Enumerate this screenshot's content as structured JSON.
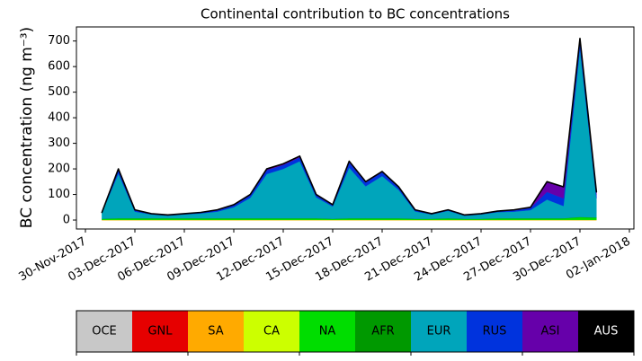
{
  "chart_data": {
    "type": "stacked_area",
    "title": "Continental contribution to BC concentrations",
    "y_label": "BC concentration (ng m⁻³)",
    "x": [
      "2017-12-01",
      "2017-12-02",
      "2017-12-03",
      "2017-12-04",
      "2017-12-05",
      "2017-12-06",
      "2017-12-07",
      "2017-12-08",
      "2017-12-09",
      "2017-12-10",
      "2017-12-11",
      "2017-12-12",
      "2017-12-13",
      "2017-12-14",
      "2017-12-15",
      "2017-12-16",
      "2017-12-17",
      "2017-12-18",
      "2017-12-19",
      "2017-12-20",
      "2017-12-21",
      "2017-12-22",
      "2017-12-23",
      "2017-12-24",
      "2017-12-25",
      "2017-12-26",
      "2017-12-27",
      "2017-12-28",
      "2017-12-29",
      "2017-12-30",
      "2017-12-31"
    ],
    "xlim": [
      "2017-11-30",
      "2018-01-02"
    ],
    "xticks": [
      {
        "value": "2017-11-30",
        "label": "30-Nov-2017"
      },
      {
        "value": "2017-12-03",
        "label": "03-Dec-2017"
      },
      {
        "value": "2017-12-06",
        "label": "06-Dec-2017"
      },
      {
        "value": "2017-12-09",
        "label": "09-Dec-2017"
      },
      {
        "value": "2017-12-12",
        "label": "12-Dec-2017"
      },
      {
        "value": "2017-12-15",
        "label": "15-Dec-2017"
      },
      {
        "value": "2017-12-18",
        "label": "18-Dec-2017"
      },
      {
        "value": "2017-12-21",
        "label": "21-Dec-2017"
      },
      {
        "value": "2017-12-24",
        "label": "24-Dec-2017"
      },
      {
        "value": "2017-12-27",
        "label": "27-Dec-2017"
      },
      {
        "value": "2017-12-30",
        "label": "30-Dec-2017"
      },
      {
        "value": "2018-01-02",
        "label": "02-Jan-2018"
      }
    ],
    "ylim": [
      -35,
      755
    ],
    "yticks": [
      0,
      100,
      200,
      300,
      400,
      500,
      600,
      700
    ],
    "series": [
      {
        "name": "OCE",
        "color": "#c8c8c8",
        "values": [
          0,
          0,
          0,
          0,
          0,
          0,
          0,
          0,
          0,
          0,
          0,
          0,
          0,
          0,
          0,
          0,
          0,
          0,
          0,
          0,
          0,
          0,
          0,
          0,
          0,
          0,
          0,
          0,
          0,
          0,
          0
        ]
      },
      {
        "name": "GNL",
        "color": "#e60000",
        "values": [
          0,
          0,
          0,
          0,
          0,
          0,
          0,
          0,
          0,
          0,
          0,
          0,
          0,
          0,
          0,
          0,
          0,
          0,
          0,
          0,
          0,
          0,
          0,
          0,
          0,
          0,
          0,
          0,
          0,
          0,
          0
        ]
      },
      {
        "name": "SA",
        "color": "#ffaa00",
        "values": [
          0,
          0,
          0,
          0,
          0,
          0,
          0,
          0,
          0,
          0,
          0,
          0,
          0,
          0,
          0,
          0,
          0,
          0,
          0,
          0,
          0,
          0,
          0,
          0,
          0,
          0,
          0,
          0,
          0,
          0,
          0
        ]
      },
      {
        "name": "CA",
        "color": "#ccff00",
        "values": [
          1,
          1,
          1,
          1,
          1,
          1,
          1,
          1,
          1,
          1,
          1,
          1,
          1,
          1,
          1,
          1,
          1,
          1,
          1,
          1,
          1,
          1,
          1,
          1,
          1,
          1,
          1,
          1,
          1,
          1,
          1
        ]
      },
      {
        "name": "NA",
        "color": "#00dd00",
        "values": [
          3,
          5,
          5,
          5,
          5,
          5,
          5,
          5,
          5,
          5,
          5,
          5,
          5,
          5,
          3,
          5,
          5,
          5,
          5,
          3,
          3,
          5,
          3,
          3,
          5,
          5,
          5,
          5,
          5,
          10,
          8
        ]
      },
      {
        "name": "AFR",
        "color": "#009900",
        "values": [
          1,
          1,
          1,
          1,
          1,
          1,
          1,
          1,
          1,
          1,
          1,
          1,
          1,
          1,
          1,
          1,
          1,
          1,
          1,
          1,
          1,
          1,
          1,
          1,
          1,
          1,
          1,
          1,
          1,
          1,
          1
        ]
      },
      {
        "name": "EUR",
        "color": "#00a5bb",
        "values": [
          23,
          175,
          26,
          15,
          10,
          15,
          19,
          26,
          43,
          80,
          173,
          193,
          223,
          82,
          48,
          198,
          125,
          165,
          111,
          29,
          17,
          29,
          12,
          17,
          24,
          26,
          32,
          73,
          48,
          658,
          75
        ]
      },
      {
        "name": "RUS",
        "color": "#0033dd",
        "values": [
          2,
          15,
          5,
          2,
          2,
          2,
          3,
          5,
          8,
          10,
          15,
          15,
          15,
          8,
          5,
          20,
          15,
          15,
          10,
          5,
          2,
          3,
          2,
          2,
          3,
          5,
          8,
          30,
          30,
          30,
          15
        ]
      },
      {
        "name": "ASI",
        "color": "#6600aa",
        "values": [
          0,
          3,
          2,
          1,
          1,
          1,
          1,
          2,
          2,
          3,
          5,
          5,
          5,
          3,
          2,
          5,
          3,
          3,
          2,
          1,
          1,
          1,
          1,
          1,
          1,
          2,
          3,
          40,
          45,
          10,
          10
        ]
      },
      {
        "name": "AUS",
        "color": "#000000",
        "values": [
          0,
          0,
          0,
          0,
          0,
          0,
          0,
          0,
          0,
          0,
          0,
          0,
          0,
          0,
          0,
          0,
          0,
          0,
          0,
          0,
          0,
          0,
          0,
          0,
          0,
          0,
          0,
          0,
          0,
          0,
          0
        ]
      }
    ]
  }
}
